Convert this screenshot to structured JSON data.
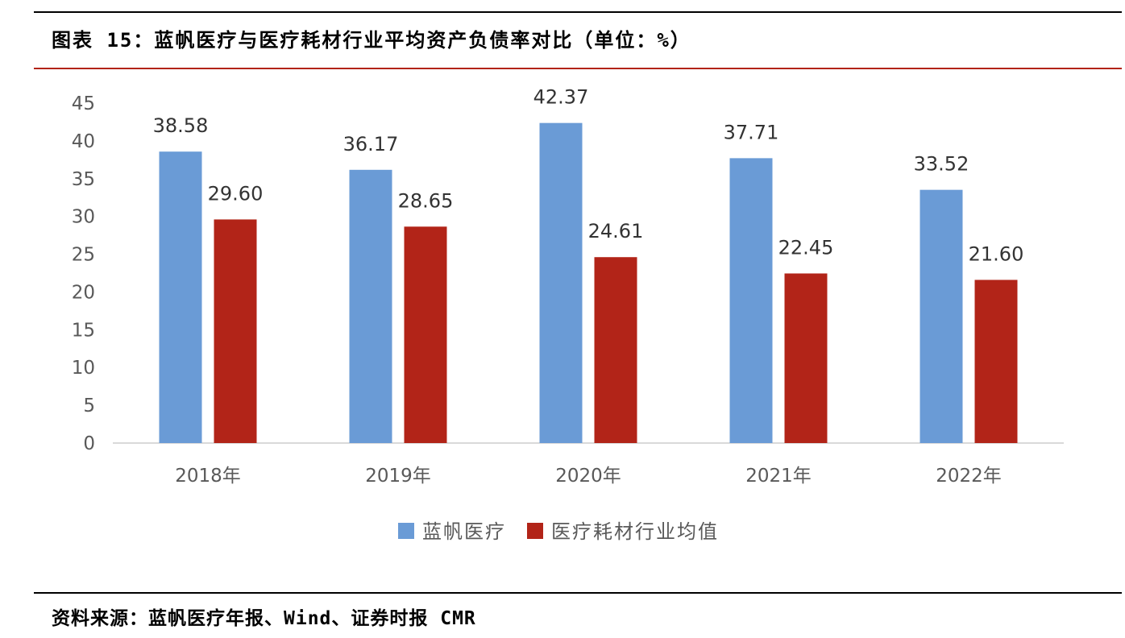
{
  "figure_title": "图表 15：蓝帆医疗与医疗耗材行业平均资产负债率对比（单位：%）",
  "source_note": "资料来源：蓝帆医疗年报、Wind、证券时报 CMR",
  "colors": {
    "series_1": "#6a9bd6",
    "series_2": "#b22418",
    "axis": "#d9d9d9",
    "title_rule": "#b22418"
  },
  "chart_data": {
    "type": "bar",
    "title": "",
    "xlabel": "",
    "ylabel": "",
    "categories": [
      "2018年",
      "2019年",
      "2020年",
      "2021年",
      "2022年"
    ],
    "series": [
      {
        "name": "蓝帆医疗",
        "values": [
          38.58,
          36.17,
          42.37,
          37.71,
          33.52
        ],
        "labels": [
          "38.58",
          "36.17",
          "42.37",
          "37.71",
          "33.52"
        ]
      },
      {
        "name": "医疗耗材行业均值",
        "values": [
          29.6,
          28.65,
          24.61,
          22.45,
          21.6
        ],
        "labels": [
          "29.60",
          "28.65",
          "24.61",
          "22.45",
          "21.60"
        ]
      }
    ],
    "ylim": [
      0,
      45
    ],
    "yticks": [
      0,
      5,
      10,
      15,
      20,
      25,
      30,
      35,
      40,
      45
    ],
    "grid": false,
    "legend_position": "bottom"
  }
}
